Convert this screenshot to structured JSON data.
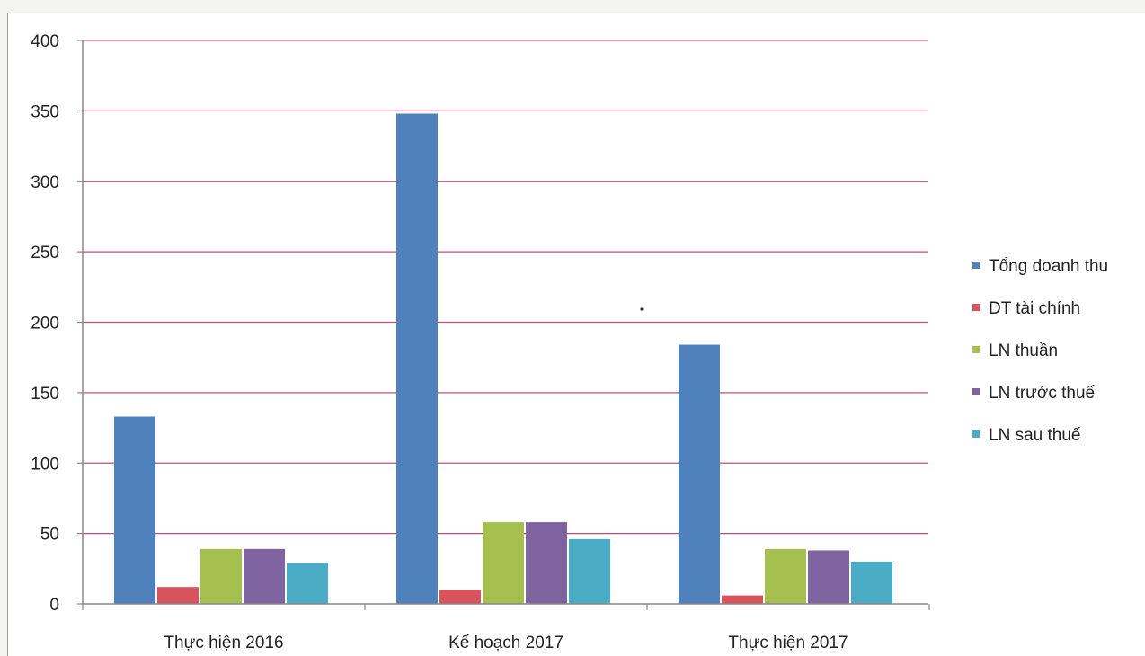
{
  "chart_data": {
    "type": "bar",
    "title": "",
    "xlabel": "",
    "ylabel": "",
    "categories": [
      "Thực hiện 2016",
      "Kế hoạch 2017",
      "Thực hiện 2017"
    ],
    "series": [
      {
        "name": "Tổng doanh thu",
        "color": "#4f81bd",
        "values": [
          133,
          348,
          184
        ]
      },
      {
        "name": "DT tài chính",
        "color": "#d9535d",
        "values": [
          12,
          10,
          6
        ]
      },
      {
        "name": "LN thuần",
        "color": "#a5c04e",
        "values": [
          39,
          58,
          39
        ]
      },
      {
        "name": "LN trước thuế",
        "color": "#8064a2",
        "values": [
          39,
          58,
          38
        ]
      },
      {
        "name": "LN sau thuế",
        "color": "#4bacc6",
        "values": [
          29,
          46,
          30
        ]
      }
    ],
    "ylim": [
      0,
      400
    ],
    "yticks": [
      0,
      50,
      100,
      150,
      200,
      250,
      300,
      350,
      400
    ],
    "grid": true,
    "gridline_color": "#c0507a",
    "legend_position": "right"
  }
}
